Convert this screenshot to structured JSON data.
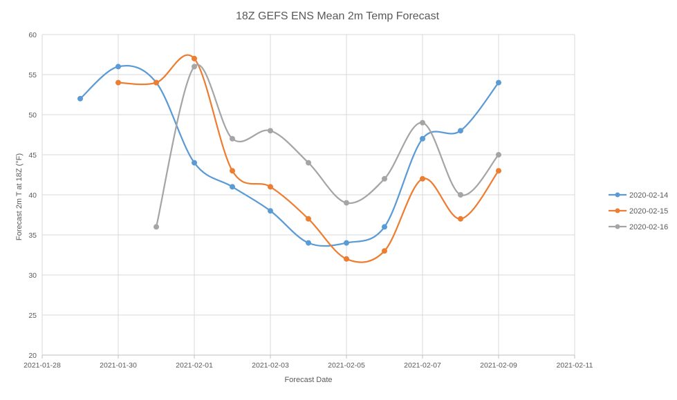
{
  "chart_data": {
    "type": "line",
    "title": "18Z GEFS ENS Mean 2m Temp Forecast",
    "xlabel": "Forecast Date",
    "ylabel": "Forecast 2m T at 18Z (°F)",
    "x_ticks": [
      "2021-01-28",
      "2021-01-30",
      "2021-02-01",
      "2021-02-03",
      "2021-02-05",
      "2021-02-07",
      "2021-02-09",
      "2021-02-11"
    ],
    "xlim": [
      "2021-01-28",
      "2021-02-11"
    ],
    "y_ticks": [
      20,
      25,
      30,
      35,
      40,
      45,
      50,
      55,
      60
    ],
    "ylim": [
      20,
      60
    ],
    "grid": true,
    "smoothed": true,
    "legend_position": "right",
    "series": [
      {
        "name": "2020-02-14",
        "color": "#5b9bd5",
        "points": [
          {
            "x": "2021-01-29",
            "y": 52
          },
          {
            "x": "2021-01-30",
            "y": 56
          },
          {
            "x": "2021-01-31",
            "y": 54
          },
          {
            "x": "2021-02-01",
            "y": 44
          },
          {
            "x": "2021-02-02",
            "y": 41
          },
          {
            "x": "2021-02-03",
            "y": 38
          },
          {
            "x": "2021-02-04",
            "y": 34
          },
          {
            "x": "2021-02-05",
            "y": 34
          },
          {
            "x": "2021-02-06",
            "y": 36
          },
          {
            "x": "2021-02-07",
            "y": 47
          },
          {
            "x": "2021-02-08",
            "y": 48
          },
          {
            "x": "2021-02-09",
            "y": 54
          }
        ]
      },
      {
        "name": "2020-02-15",
        "color": "#ed7d31",
        "points": [
          {
            "x": "2021-01-30",
            "y": 54
          },
          {
            "x": "2021-01-31",
            "y": 54
          },
          {
            "x": "2021-02-01",
            "y": 57
          },
          {
            "x": "2021-02-02",
            "y": 43
          },
          {
            "x": "2021-02-03",
            "y": 41
          },
          {
            "x": "2021-02-04",
            "y": 37
          },
          {
            "x": "2021-02-05",
            "y": 32
          },
          {
            "x": "2021-02-06",
            "y": 33
          },
          {
            "x": "2021-02-07",
            "y": 42
          },
          {
            "x": "2021-02-08",
            "y": 37
          },
          {
            "x": "2021-02-09",
            "y": 43
          }
        ]
      },
      {
        "name": "2020-02-16",
        "color": "#a5a5a5",
        "points": [
          {
            "x": "2021-01-31",
            "y": 36
          },
          {
            "x": "2021-02-01",
            "y": 56
          },
          {
            "x": "2021-02-02",
            "y": 47
          },
          {
            "x": "2021-02-03",
            "y": 48
          },
          {
            "x": "2021-02-04",
            "y": 44
          },
          {
            "x": "2021-02-05",
            "y": 39
          },
          {
            "x": "2021-02-06",
            "y": 42
          },
          {
            "x": "2021-02-07",
            "y": 49
          },
          {
            "x": "2021-02-08",
            "y": 40
          },
          {
            "x": "2021-02-09",
            "y": 45
          }
        ]
      }
    ]
  }
}
